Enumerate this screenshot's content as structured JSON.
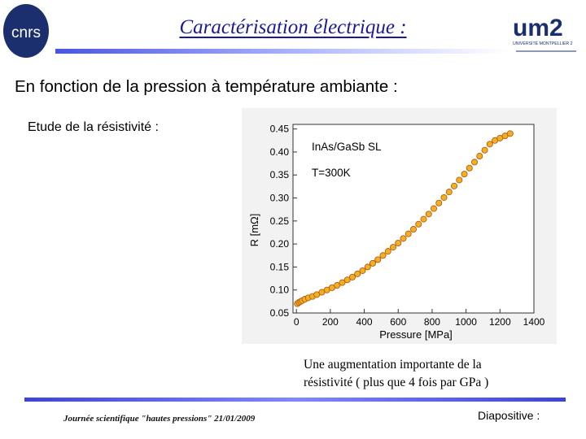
{
  "header": {
    "title": "Caractérisation électrique :",
    "cnrs_logo_text": "cnrs",
    "um2_logo_text": "um2",
    "um2_logo_subtext": "UNIVERSITÉ MONTPELLIER 2"
  },
  "slide": {
    "subtitle": "En fonction de la pression à température ambiante :",
    "section_label": "Etude de la résistivité :",
    "note_line1": "Une augmentation importante de la",
    "note_line2": "résistivité  ( plus que 4 fois par GPa )"
  },
  "footer": {
    "left_text": "Journée scientifique \"hautes pressions\" 21/01/2009",
    "right_text": "Diapositive :"
  },
  "chart_data": {
    "type": "scatter",
    "title": "",
    "annotations": [
      "InAs/GaSb SL",
      "T=300K"
    ],
    "xlabel": "Pressure [MPa]",
    "ylabel": "R [mΩ]",
    "xlim": [
      -20,
      1400
    ],
    "ylim": [
      0.05,
      0.46
    ],
    "x_ticks": [
      0,
      200,
      400,
      600,
      800,
      1000,
      1200,
      1400
    ],
    "y_ticks": [
      0.05,
      0.1,
      0.15,
      0.2,
      0.25,
      0.3,
      0.35,
      0.4,
      0.45
    ],
    "y_tick_labels": [
      "0.05",
      "0.10",
      "0.15",
      "0.20",
      "0.25",
      "0.30",
      "0.35",
      "0.40",
      "0.45"
    ],
    "marker_color": "#f0b020",
    "marker_edge_color": "#b05010",
    "series": [
      {
        "x": [
          5,
          15,
          25,
          35,
          50,
          70,
          95,
          120,
          150,
          180,
          210,
          240,
          270,
          300,
          330,
          360,
          390,
          420,
          450,
          480,
          510,
          540,
          570,
          600,
          630,
          660,
          690,
          720,
          750,
          780,
          810,
          840,
          870,
          900,
          930,
          960,
          990,
          1020,
          1050,
          1080,
          1110,
          1140,
          1170,
          1200,
          1230,
          1260
        ],
        "y": [
          0.07,
          0.073,
          0.075,
          0.077,
          0.08,
          0.083,
          0.086,
          0.09,
          0.095,
          0.1,
          0.105,
          0.11,
          0.116,
          0.122,
          0.128,
          0.135,
          0.142,
          0.15,
          0.158,
          0.166,
          0.175,
          0.184,
          0.193,
          0.202,
          0.212,
          0.222,
          0.232,
          0.243,
          0.254,
          0.265,
          0.277,
          0.289,
          0.301,
          0.313,
          0.326,
          0.339,
          0.352,
          0.365,
          0.378,
          0.391,
          0.404,
          0.417,
          0.425,
          0.43,
          0.435,
          0.44
        ]
      }
    ]
  }
}
